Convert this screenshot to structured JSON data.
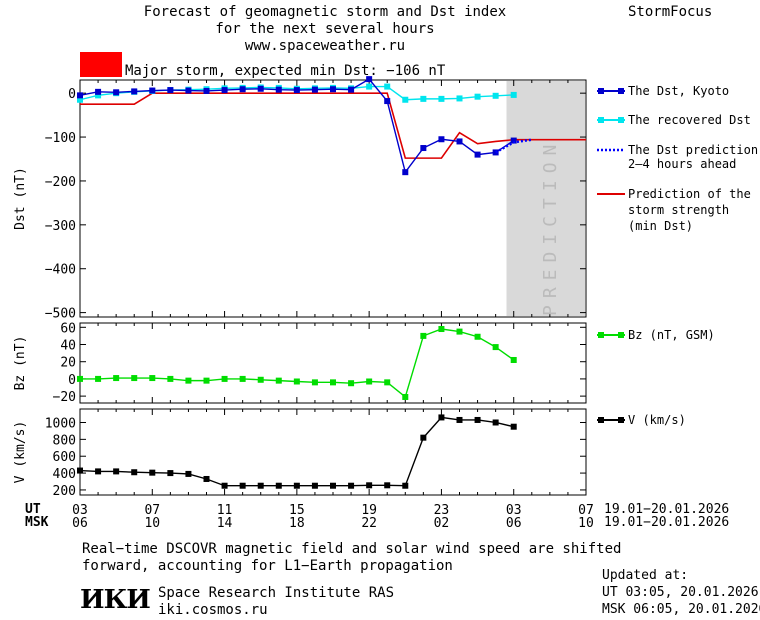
{
  "header": {
    "title_line1": "Forecast of geomagnetic storm and Dst index",
    "title_line2": "for the next several hours",
    "url": "www.spaceweather.ru",
    "brand": "StormFocus"
  },
  "storm": {
    "label": "Major storm, expected min Dst: −106 nT",
    "color": "#ff0000"
  },
  "prediction_label": "PREDICTION",
  "legend": {
    "dst_kyoto": "The Dst, Kyoto",
    "recovered": "The recovered Dst",
    "prediction_l1": "The Dst prediction",
    "prediction_l2": "2–4 hours ahead",
    "strength_l1": "Prediction of the",
    "strength_l2": "storm strength",
    "strength_l3": "(min Dst)",
    "bz": "Bz (nT, GSM)",
    "v": "V (km/s)"
  },
  "time_axis": {
    "ut_label": "UT",
    "msk_label": "MSK",
    "ut_ticks": [
      "03",
      "07",
      "11",
      "15",
      "19",
      "23",
      "03",
      "07"
    ],
    "msk_ticks": [
      "06",
      "10",
      "14",
      "18",
      "22",
      "02",
      "06",
      "10"
    ],
    "ut_range": "19.01−20.01.2026",
    "msk_range": "19.01−20.01.2026"
  },
  "footer": {
    "note_line1": "Real−time DSCOVR magnetic field and solar wind speed are shifted",
    "note_line2": "forward, accounting for L1−Earth propagation",
    "logo_text": "ИКИ",
    "institute": "Space Research Institute RAS",
    "site": "iki.cosmos.ru",
    "updated_label": "Updated at:",
    "updated_ut": "UT  03:05, 20.01.2026",
    "updated_msk": "MSK 06:05, 20.01.2026"
  },
  "colors": {
    "dst": "#0000cc",
    "recovered": "#00e5ee",
    "prediction_dots": "#0000ff",
    "strength": "#dd0000",
    "bz": "#00dd00",
    "v": "#000000",
    "prediction_shade": "#d9d9d9"
  },
  "chart_data": [
    {
      "type": "line",
      "ylabel": "Dst (nT)",
      "ylim": [
        -510,
        30
      ],
      "yticks": [
        0,
        -100,
        -200,
        -300,
        -400,
        -500
      ],
      "xlim": [
        0,
        28
      ],
      "series": [
        {
          "name": "The Dst, Kyoto",
          "x": [
            0,
            1,
            2,
            3,
            4,
            5,
            6,
            7,
            8,
            9,
            10,
            11,
            12,
            13,
            14,
            15,
            16,
            17,
            18,
            19,
            20,
            21,
            22,
            23,
            24
          ],
          "y": [
            -5,
            3,
            2,
            4,
            6,
            7,
            6,
            5,
            7,
            9,
            10,
            8,
            7,
            8,
            9,
            8,
            32,
            -18,
            -180,
            -125,
            -105,
            -110,
            -140,
            -135,
            -108
          ]
        },
        {
          "name": "The recovered Dst",
          "x": [
            0,
            1,
            2,
            3,
            4,
            5,
            6,
            7,
            8,
            9,
            10,
            11,
            12,
            13,
            14,
            15,
            16,
            17,
            18,
            19,
            20,
            21,
            22,
            23,
            24
          ],
          "y": [
            -15,
            -5,
            0,
            3,
            5,
            7,
            8,
            9,
            11,
            12,
            13,
            12,
            10,
            11,
            12,
            11,
            15,
            15,
            -15,
            -13,
            -13,
            -12,
            -8,
            -6,
            -4
          ]
        },
        {
          "name": "The Dst prediction 2–4 hours ahead",
          "x": [
            23,
            24,
            25
          ],
          "y": [
            -135,
            -112,
            -106
          ]
        },
        {
          "name": "Prediction of the storm strength (min Dst)",
          "x": [
            0,
            3,
            4,
            17,
            18,
            20,
            21,
            22,
            23,
            24,
            28
          ],
          "y": [
            -25,
            -25,
            0,
            0,
            -148,
            -148,
            -90,
            -115,
            -110,
            -106,
            -106
          ]
        }
      ],
      "prediction_zone": [
        23.6,
        28
      ]
    },
    {
      "type": "line",
      "ylabel": "Bz (nT)",
      "ylim": [
        -28,
        65
      ],
      "yticks": [
        60,
        40,
        20,
        0,
        -20
      ],
      "xlim": [
        0,
        28
      ],
      "series": [
        {
          "name": "Bz (nT, GSM)",
          "x": [
            0,
            1,
            2,
            3,
            4,
            5,
            6,
            7,
            8,
            9,
            10,
            11,
            12,
            13,
            14,
            15,
            16,
            17,
            18,
            19,
            20,
            21,
            22,
            23,
            24
          ],
          "y": [
            0,
            0,
            1,
            1,
            1,
            0,
            -2,
            -2,
            0,
            0,
            -1,
            -2,
            -3,
            -4,
            -4,
            -5,
            -3,
            -4,
            -21,
            50,
            58,
            55,
            49,
            37,
            22
          ]
        }
      ]
    },
    {
      "type": "line",
      "ylabel": "V (km/s)",
      "ylim": [
        140,
        1160
      ],
      "yticks": [
        1000,
        800,
        600,
        400,
        200
      ],
      "xlim": [
        0,
        28
      ],
      "series": [
        {
          "name": "V (km/s)",
          "x": [
            0,
            1,
            2,
            3,
            4,
            5,
            6,
            7,
            8,
            9,
            10,
            11,
            12,
            13,
            14,
            15,
            16,
            17,
            18,
            19,
            20,
            21,
            22,
            23,
            24
          ],
          "y": [
            430,
            420,
            420,
            410,
            405,
            400,
            390,
            330,
            250,
            250,
            250,
            250,
            250,
            250,
            250,
            250,
            255,
            255,
            250,
            820,
            1060,
            1030,
            1030,
            1000,
            950
          ]
        }
      ]
    }
  ]
}
